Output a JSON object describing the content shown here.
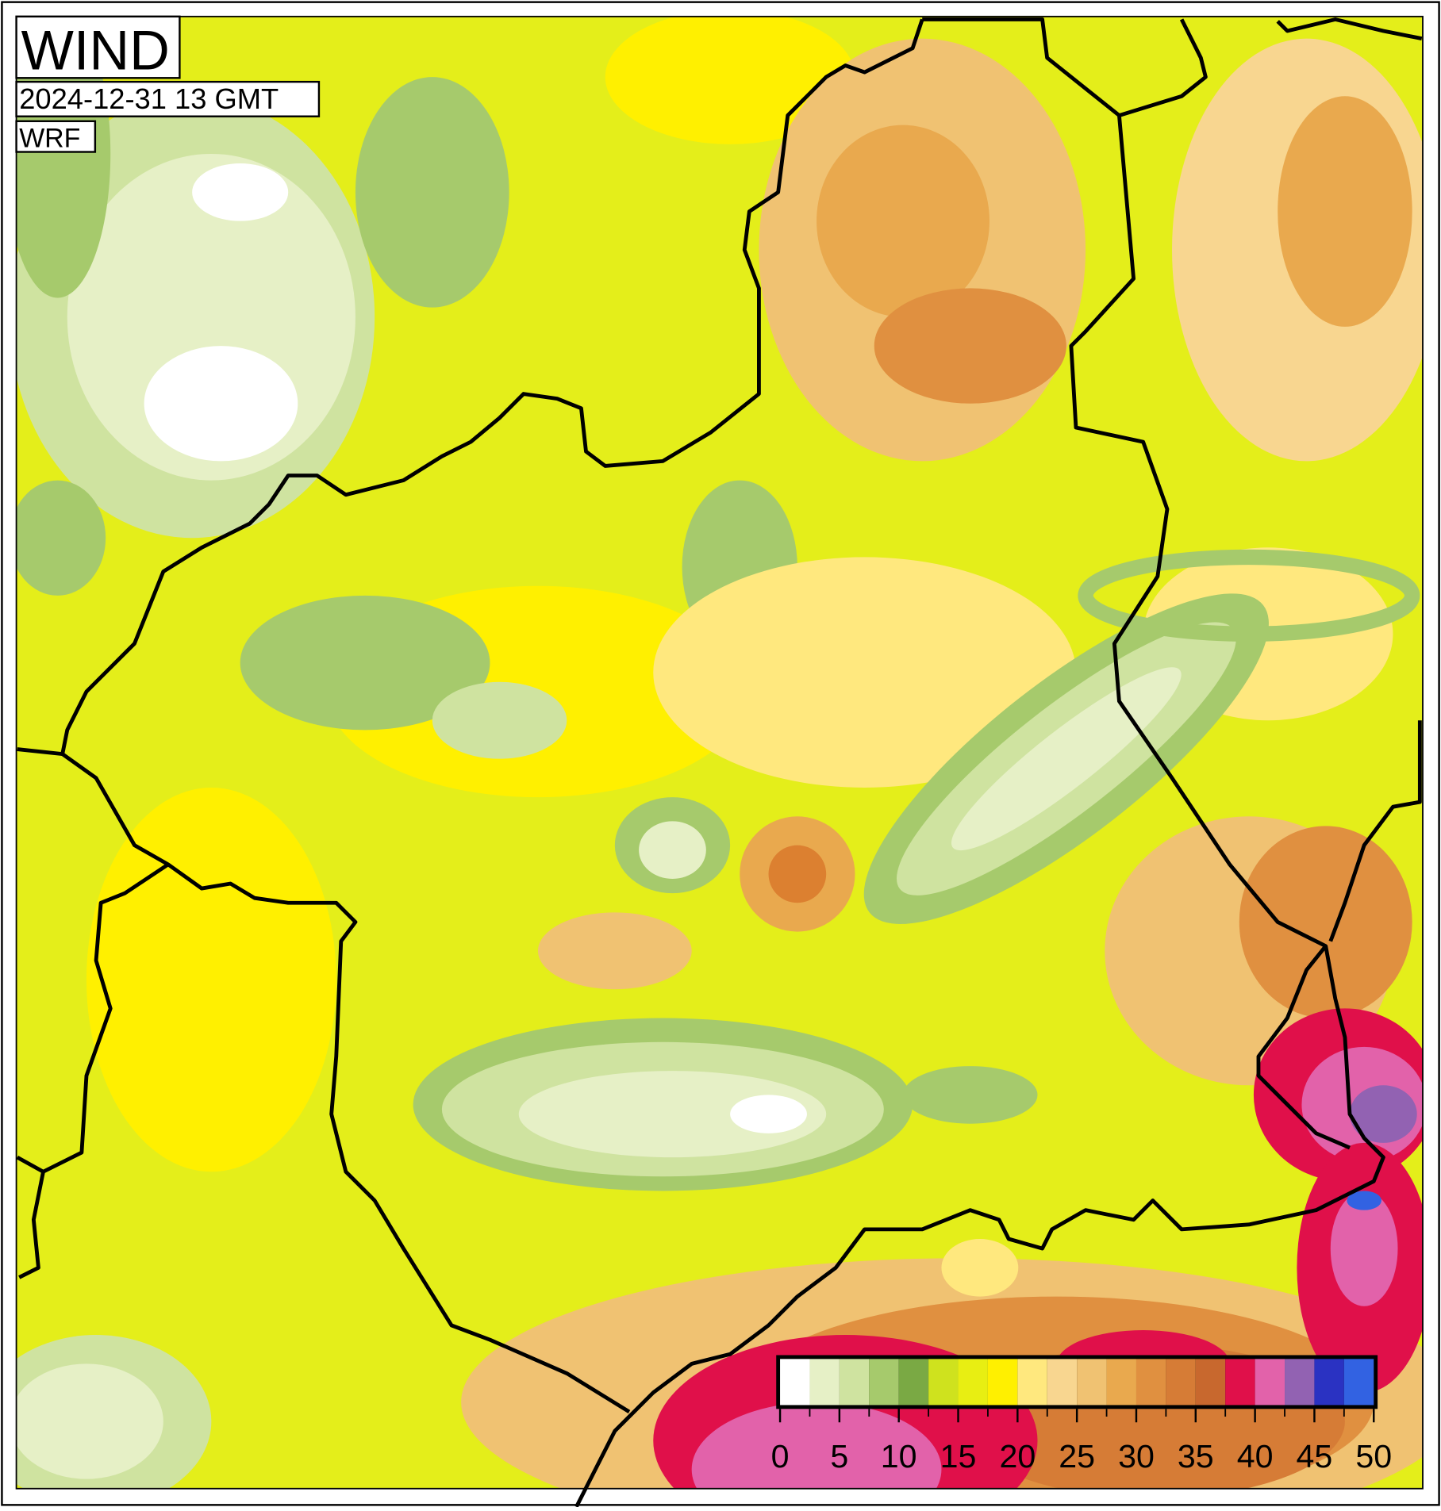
{
  "header": {
    "title": "WIND",
    "datetime": "2024-12-31 13 GMT",
    "model": "WRF"
  },
  "colorbar": {
    "lim": [
      0,
      50
    ],
    "ticks": [
      0,
      5,
      10,
      15,
      20,
      25,
      30,
      35,
      40,
      45,
      50
    ],
    "bounds": [
      0,
      2.5,
      5,
      7.5,
      10,
      12.5,
      15,
      17.5,
      20,
      22.5,
      25,
      27.5,
      30,
      32.5,
      35,
      37.5,
      40,
      42.5,
      45,
      47.5,
      50
    ],
    "colors": [
      "#ffffff",
      "#e6f0c6",
      "#cfe3a0",
      "#a6ca6c",
      "#7aa944",
      "#cfe21e",
      "#e8ee12",
      "#fff000",
      "#ffe87e",
      "#f8d690",
      "#f0c272",
      "#e9a94e",
      "#e09040",
      "#d67c36",
      "#c8682e",
      "#e0104a",
      "#e262aa",
      "#9262b2",
      "#2a32c2",
      "#3262e2",
      "#6a9cf2",
      "#a6c8f8"
    ]
  }
}
